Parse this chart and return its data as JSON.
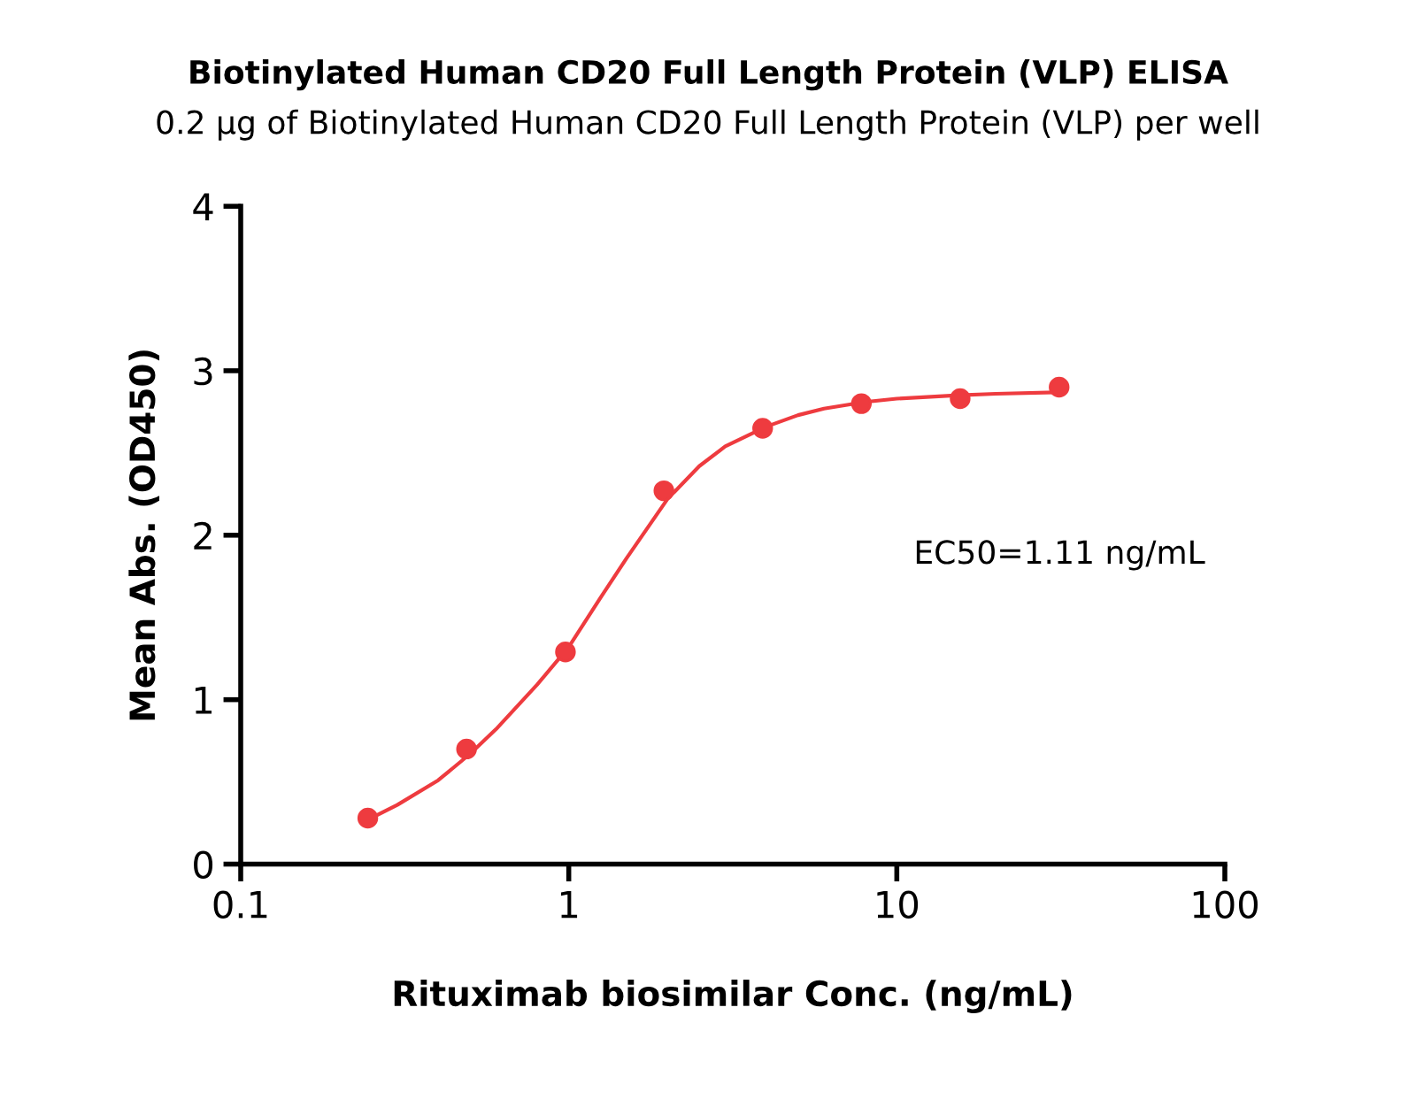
{
  "chart_data": {
    "type": "scatter",
    "title": "Biotinylated Human CD20 Full Length Protein (VLP) ELISA",
    "subtitle": "0.2 μg of Biotinylated Human CD20 Full Length Protein (VLP) per well",
    "xlabel": "Rituximab biosimilar Conc. (ng/mL)",
    "ylabel": "Mean Abs. (OD450)",
    "log": "x",
    "xlim": [
      0.1,
      100
    ],
    "xticks": [
      0.1,
      1,
      10,
      100
    ],
    "ylim": [
      0,
      4
    ],
    "yticks": [
      0,
      1,
      2,
      3,
      4
    ],
    "grid": false,
    "legend": false,
    "marker": "circle",
    "annotations": [
      "EC50=1.11 ng/mL"
    ],
    "series": [
      {
        "color": "#ee3b3f",
        "x": [
          0.244,
          0.488,
          0.977,
          1.95,
          3.9,
          7.8,
          15.6,
          31.25
        ],
        "values": [
          0.28,
          0.7,
          1.29,
          2.27,
          2.65,
          2.8,
          2.83,
          2.9
        ]
      },
      {
        "type": "line",
        "marker": "none",
        "line_style": "solid",
        "color": "#ee3b3f",
        "x": [
          0.25,
          0.3,
          0.4,
          0.5,
          0.6,
          0.8,
          1,
          1.25,
          1.5,
          2,
          2.5,
          3,
          4,
          5,
          6,
          8,
          10,
          15,
          20,
          32
        ],
        "values": [
          0.28,
          0.36,
          0.51,
          0.67,
          0.82,
          1.09,
          1.32,
          1.62,
          1.86,
          2.22,
          2.42,
          2.54,
          2.66,
          2.73,
          2.77,
          2.81,
          2.83,
          2.85,
          2.86,
          2.87
        ]
      }
    ]
  }
}
